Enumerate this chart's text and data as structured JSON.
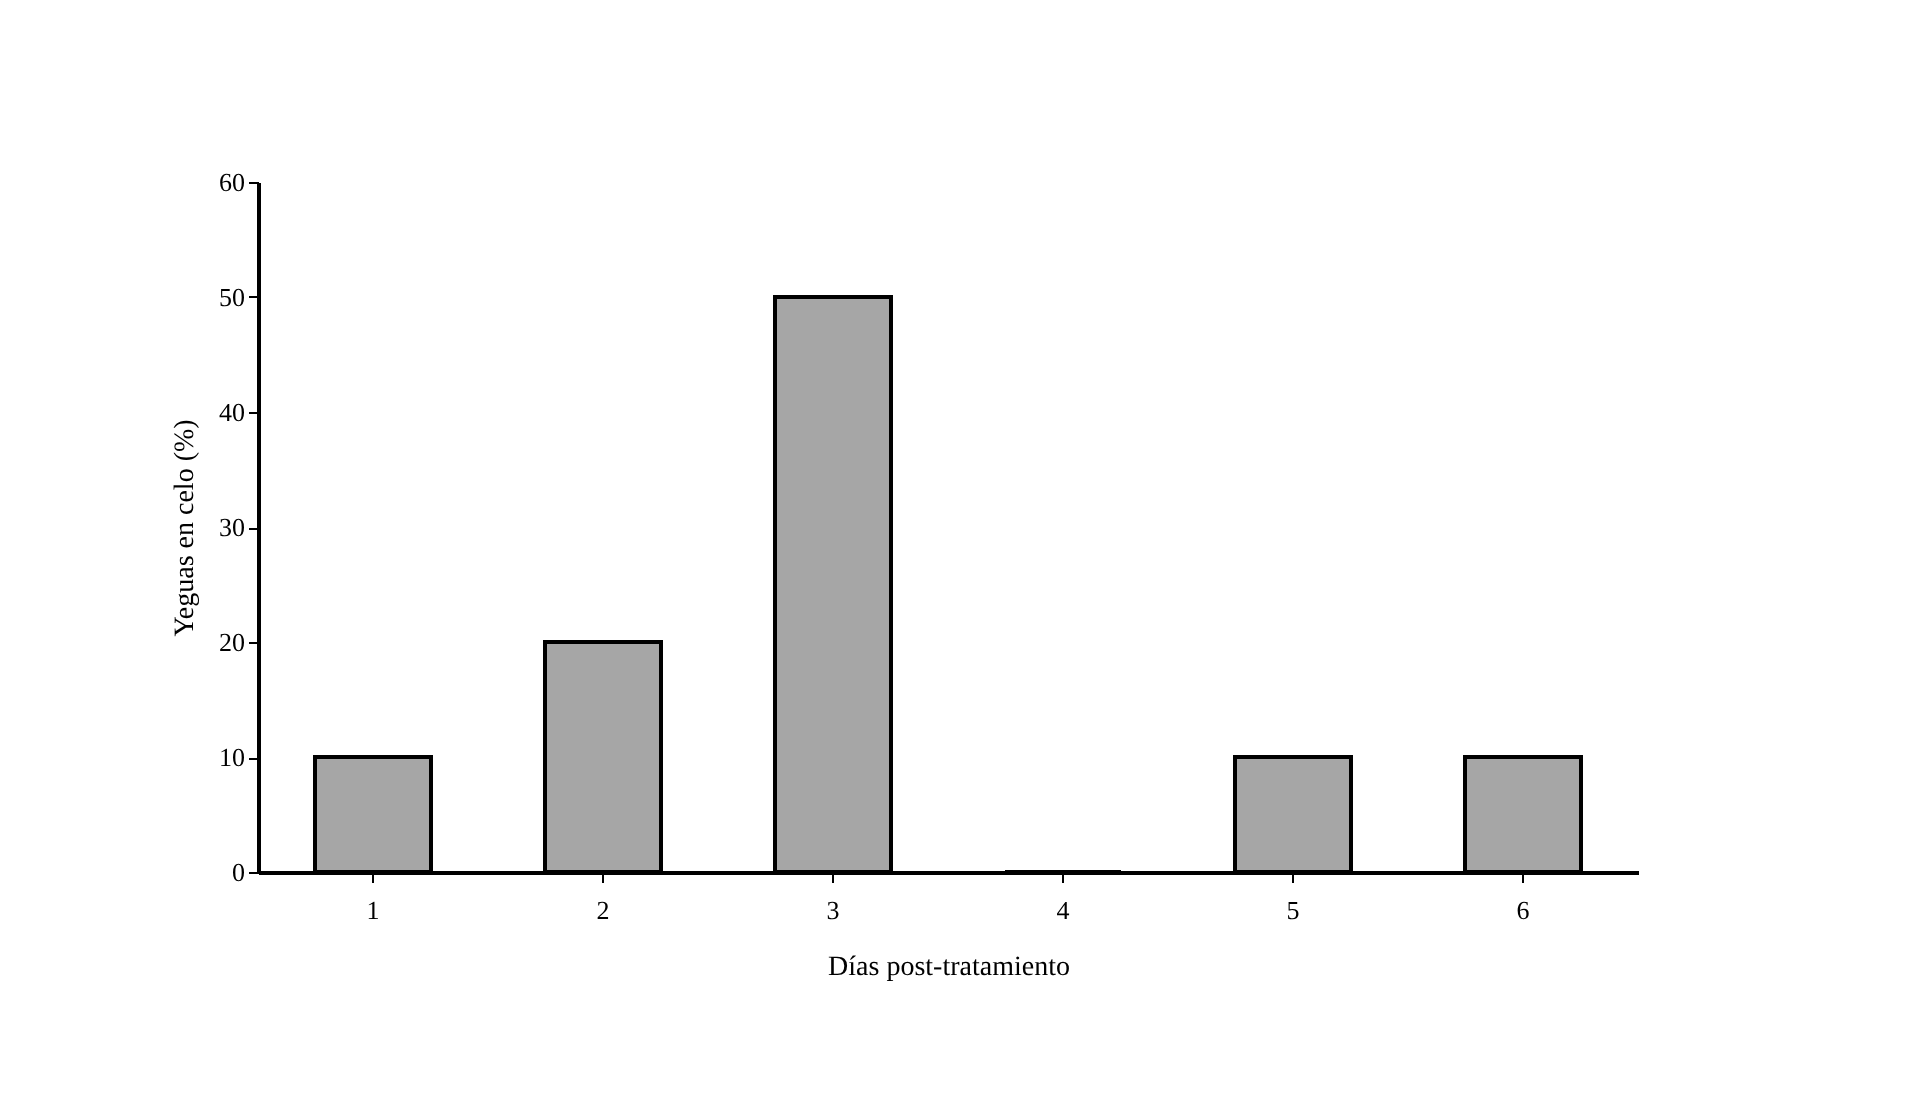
{
  "chart_data": {
    "type": "bar",
    "xlabel": "Días post-tratamiento",
    "ylabel": "Yeguas en celo (%)",
    "categories": [
      "1",
      "2",
      "3",
      "4",
      "5",
      "6"
    ],
    "values": [
      10,
      20,
      50,
      0,
      10,
      10
    ],
    "color": "#000000",
    "ylim": [
      0,
      60
    ],
    "yticks": [
      0,
      10,
      20,
      30,
      40,
      50,
      60
    ],
    "grid": false
  }
}
